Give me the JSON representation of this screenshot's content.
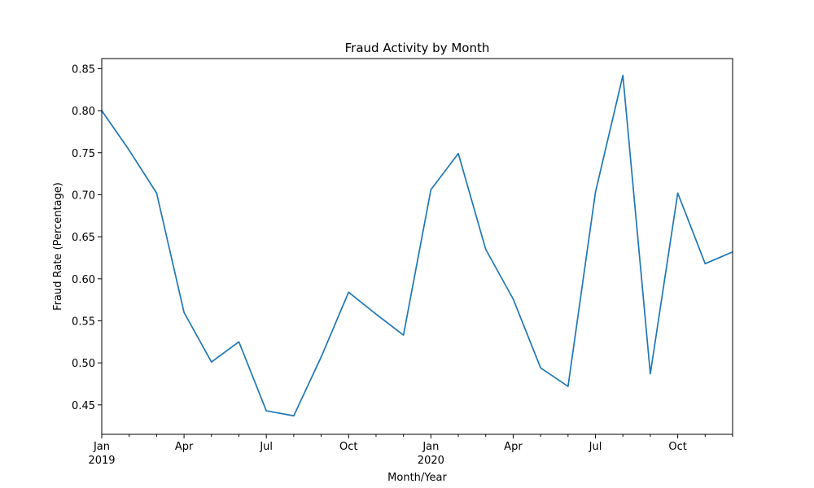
{
  "chart_data": {
    "type": "line",
    "title": "Fraud Activity by Month",
    "xlabel": "Month/Year",
    "ylabel": "Fraud Rate (Percentage)",
    "ylim": [
      0.415,
      0.862
    ],
    "grid": false,
    "line_color": "#1f77b4",
    "x": [
      "2019-01",
      "2019-02",
      "2019-03",
      "2019-04",
      "2019-05",
      "2019-06",
      "2019-07",
      "2019-08",
      "2019-09",
      "2019-10",
      "2019-11",
      "2019-12",
      "2020-01",
      "2020-02",
      "2020-03",
      "2020-04",
      "2020-05",
      "2020-06",
      "2020-07",
      "2020-08",
      "2020-09",
      "2020-10",
      "2020-11",
      "2020-12"
    ],
    "series": [
      {
        "values": [
          0.8,
          0.753,
          0.702,
          0.56,
          0.501,
          0.525,
          0.443,
          0.437,
          0.507,
          0.584,
          0.558,
          0.533,
          0.706,
          0.749,
          0.635,
          0.576,
          0.494,
          0.472,
          0.703,
          0.842,
          0.487,
          0.702,
          0.618,
          0.632
        ]
      }
    ],
    "yticks": [
      0.45,
      0.5,
      0.55,
      0.6,
      0.65,
      0.7,
      0.75,
      0.8,
      0.85
    ],
    "ytick_labels": [
      "0.45",
      "0.50",
      "0.55",
      "0.60",
      "0.65",
      "0.70",
      "0.75",
      "0.80",
      "0.85"
    ],
    "xtick_labels": [
      {
        "month": "2019-01",
        "label": "Jan",
        "sublabel": "2019"
      },
      {
        "month": "2019-04",
        "label": "Apr",
        "sublabel": ""
      },
      {
        "month": "2019-07",
        "label": "Jul",
        "sublabel": ""
      },
      {
        "month": "2019-10",
        "label": "Oct",
        "sublabel": ""
      },
      {
        "month": "2020-01",
        "label": "Jan",
        "sublabel": "2020"
      },
      {
        "month": "2020-04",
        "label": "Apr",
        "sublabel": ""
      },
      {
        "month": "2020-07",
        "label": "Jul",
        "sublabel": ""
      },
      {
        "month": "2020-10",
        "label": "Oct",
        "sublabel": ""
      }
    ]
  }
}
